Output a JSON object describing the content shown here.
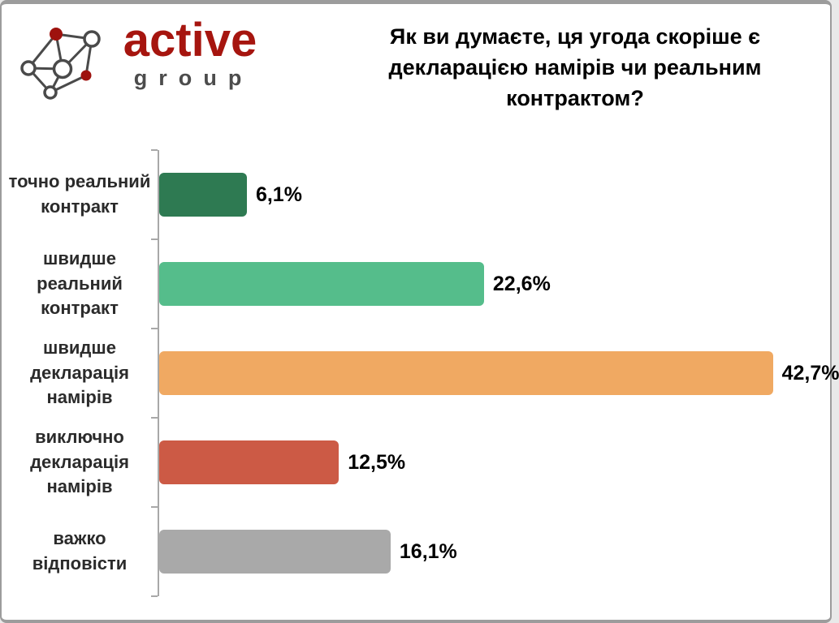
{
  "page": {
    "background": "#ffffff",
    "border_color": "#9c9c9c"
  },
  "logo": {
    "brand": "active",
    "sub": "group",
    "brand_color": "#a6150f",
    "sub_color": "#4c4c4c",
    "node_red": "#9e120e",
    "line_gray": "#4a4a4a"
  },
  "header": {
    "title": "Як ви думаєте, ця угода скоріше є декларацією намірів чи реальним контрактом?"
  },
  "chart_data": {
    "type": "bar",
    "orientation": "horizontal",
    "title": "Як ви думаєте, ця угода скоріше є декларацією намірів чи реальним контрактом?",
    "categories": [
      "точно реальний контракт",
      "швидше реальний контракт",
      "швидше декларація намірів",
      "виключно декларація намірів",
      "важко відповісти"
    ],
    "values": [
      6.1,
      22.6,
      42.7,
      12.5,
      16.1
    ],
    "value_labels": [
      "6,1%",
      "22,6%",
      "42,7%",
      "12,5%",
      "16,1%"
    ],
    "bar_colors": [
      "#2e7a52",
      "#55bd8b",
      "#f0a962",
      "#cc5a45",
      "#a9a9a9"
    ],
    "xlim": [
      0,
      46
    ],
    "xlabel": "",
    "ylabel": "",
    "grid": false,
    "legend": false,
    "axis_color": "#a8a8a8"
  }
}
